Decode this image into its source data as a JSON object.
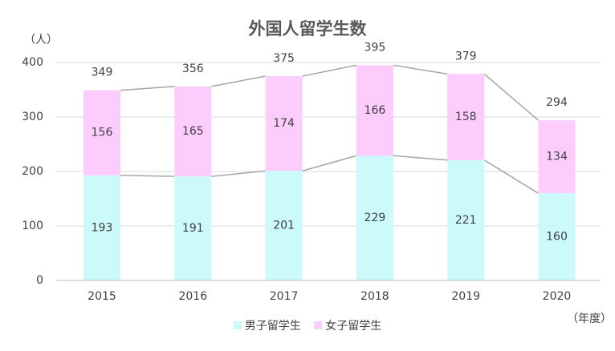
{
  "chart_data": {
    "type": "bar",
    "title": "外国人留学生数",
    "ylabel": "（人）",
    "xlabel": "（年度）",
    "categories": [
      "2015",
      "2016",
      "2017",
      "2018",
      "2019",
      "2020"
    ],
    "series": [
      {
        "name": "男子留学生",
        "values": [
          193,
          191,
          201,
          229,
          221,
          160
        ],
        "color": "#ccfafa"
      },
      {
        "name": "女子留学生",
        "values": [
          156,
          165,
          174,
          166,
          158,
          134
        ],
        "color": "#fcccfc"
      }
    ],
    "totals": [
      349,
      356,
      375,
      395,
      379,
      294
    ],
    "ylim": [
      0,
      400
    ],
    "yticks": [
      0,
      100,
      200,
      300,
      400
    ],
    "stacked": true,
    "connector_lines": true,
    "grid": true,
    "legend_position": "bottom"
  }
}
